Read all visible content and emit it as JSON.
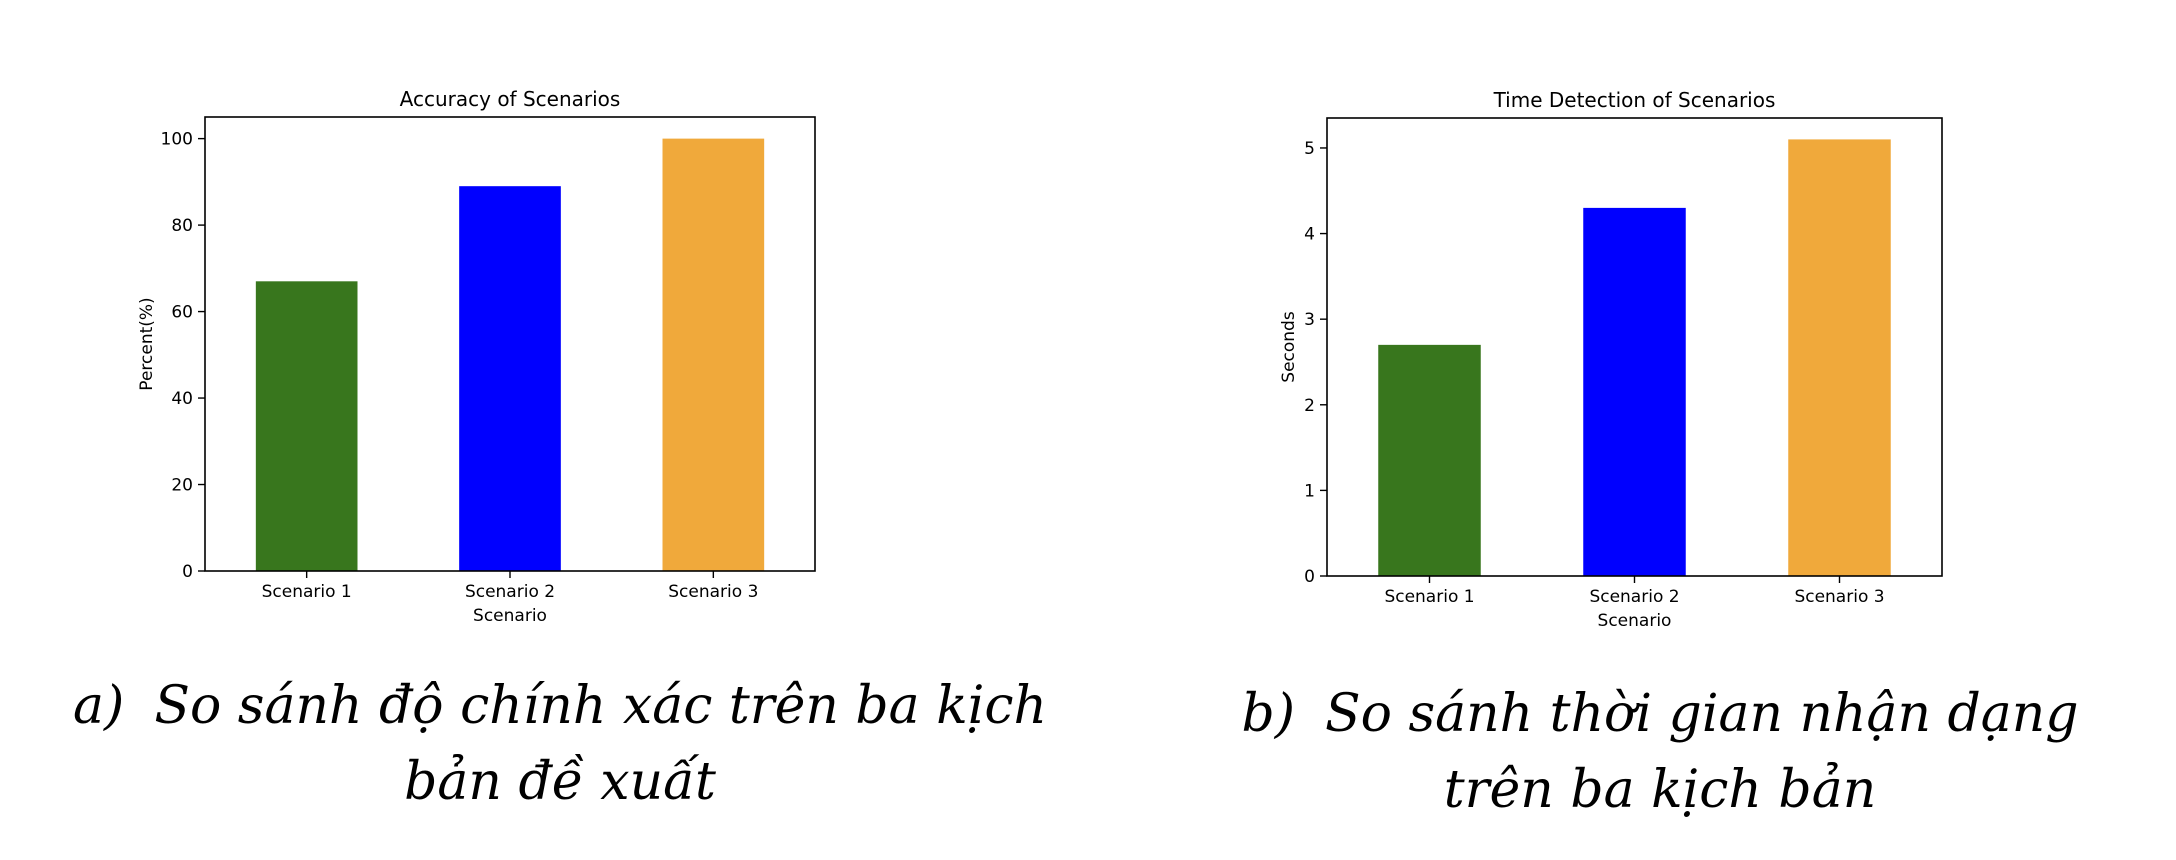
{
  "chart_data": [
    {
      "type": "bar",
      "title": "Accuracy of Scenarios",
      "xlabel": "Scenario",
      "ylabel": "Percent(%)",
      "categories": [
        "Scenario 1",
        "Scenario 2",
        "Scenario 3"
      ],
      "values": [
        67,
        89,
        100
      ],
      "colors": [
        "#38761d",
        "#0000ff",
        "#f0a93b"
      ],
      "ylim": [
        0,
        105
      ],
      "yticks": [
        0,
        20,
        40,
        60,
        80,
        100
      ],
      "grid": false,
      "caption": {
        "label": "a)",
        "text": "So sánh độ chính xác trên ba kịch bản đề xuất"
      }
    },
    {
      "type": "bar",
      "title": "Time Detection of Scenarios",
      "xlabel": "Scenario",
      "ylabel": "Seconds",
      "categories": [
        "Scenario 1",
        "Scenario 2",
        "Scenario 3"
      ],
      "values": [
        2.7,
        4.3,
        5.1
      ],
      "colors": [
        "#38761d",
        "#0000ff",
        "#f0a93b"
      ],
      "ylim": [
        0,
        5.35
      ],
      "yticks": [
        0,
        1,
        2,
        3,
        4,
        5
      ],
      "grid": false,
      "caption": {
        "label": "b)",
        "text": "So sánh thời gian nhận dạng trên ba kịch bản"
      }
    }
  ]
}
